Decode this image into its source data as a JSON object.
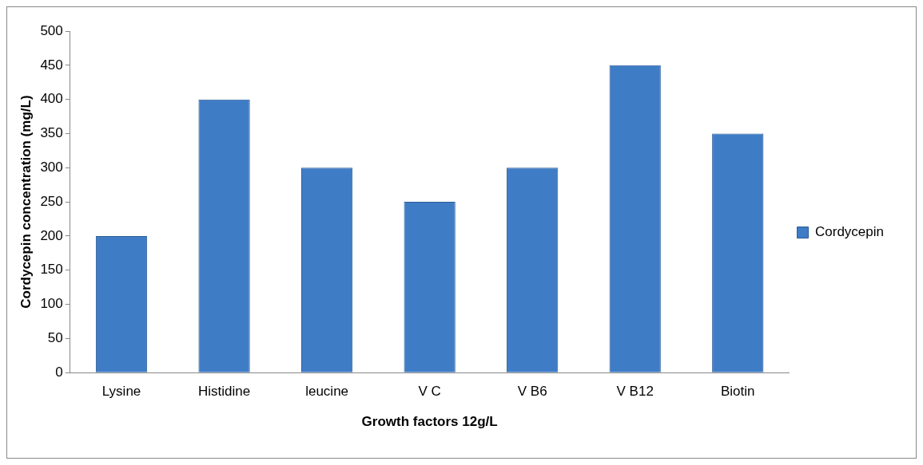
{
  "chart_data": {
    "type": "bar",
    "xlabel": "Growth factors 12g/L",
    "ylabel": "Cordycepin concentration (mg/L)",
    "categories": [
      "Lysine",
      "Histidine",
      "leucine",
      "V C",
      "V B6",
      "V B12",
      "Biotin"
    ],
    "series": [
      {
        "name": "Cordycepin",
        "color": "#3f7cc6",
        "values": [
          200,
          400,
          300,
          250,
          300,
          450,
          350
        ]
      }
    ],
    "ylim": [
      0,
      500
    ],
    "yticks": [
      0,
      50,
      100,
      150,
      200,
      250,
      300,
      350,
      400,
      450,
      500
    ],
    "grid": false,
    "legend": "right"
  }
}
